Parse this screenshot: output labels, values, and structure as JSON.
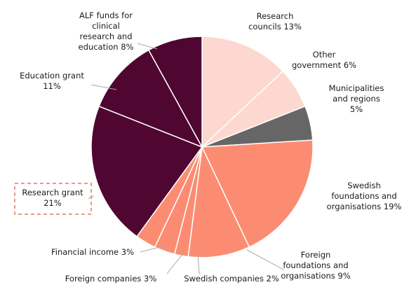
{
  "chart_data": {
    "type": "pie",
    "title": "",
    "start_at": "12 o'clock",
    "direction": "clockwise",
    "highlighted_slice": "Research grant 21%",
    "slices": [
      {
        "label_lines": [
          "Research",
          "councils 13%"
        ],
        "value": 13,
        "color": "#fcd8d0"
      },
      {
        "label_lines": [
          "Other",
          "government 6%"
        ],
        "value": 6,
        "color": "#fcd8d0"
      },
      {
        "label_lines": [
          "Municipalities",
          "and regions",
          "5%"
        ],
        "value": 5,
        "color": "#666666"
      },
      {
        "label_lines": [
          "Swedish",
          "foundations and",
          "organisations 19%"
        ],
        "value": 19,
        "color": "#fb8c72"
      },
      {
        "label_lines": [
          "Foreign",
          "foundations and",
          "organisations 9%"
        ],
        "value": 9,
        "color": "#fb8c72"
      },
      {
        "label_lines": [
          "Swedish companies 2%"
        ],
        "value": 2,
        "color": "#fb8c72"
      },
      {
        "label_lines": [
          "Foreign companies 3%"
        ],
        "value": 3,
        "color": "#fb8c72"
      },
      {
        "label_lines": [
          "Financial income 3%"
        ],
        "value": 3,
        "color": "#fb8c72"
      },
      {
        "label_lines": [
          "Research grant",
          "21%"
        ],
        "value": 21,
        "color": "#4f0631"
      },
      {
        "label_lines": [
          "Education grant",
          "11%"
        ],
        "value": 11,
        "color": "#4f0631"
      },
      {
        "label_lines": [
          "ALF funds for",
          "clinical",
          "research and",
          "education 8%"
        ],
        "value": 8,
        "color": "#4f0631"
      }
    ],
    "colors": {
      "slice_border": "#ffffff",
      "leader_line": "#aaaaaa",
      "highlight_box": "#e07a5f",
      "text": "#1a1a1a"
    }
  }
}
